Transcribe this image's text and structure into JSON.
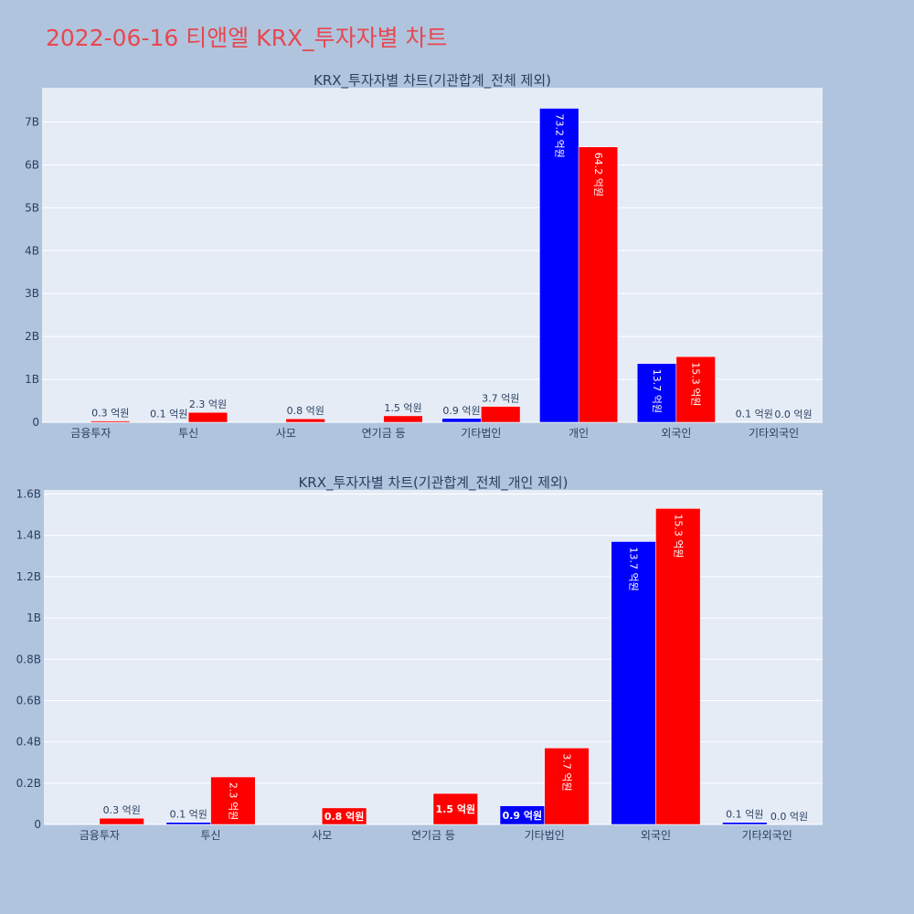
{
  "page": {
    "title": "2022-06-16 티앤엘 KRX_투자자별 차트",
    "background": "#b0c4de",
    "title_color": "#e8474f",
    "plot_background": "#e5ecf6"
  },
  "chart_data": [
    {
      "type": "bar",
      "title": "KRX_투자자별 차트(기관합계_전체 제외)",
      "categories": [
        "금융투자",
        "투신",
        "사모",
        "연기금 등",
        "기타법인",
        "개인",
        "외국인",
        "기타외국인"
      ],
      "series": [
        {
          "color": "#0000ff",
          "values": [
            0,
            10000000,
            0,
            0,
            90000000,
            7320000000,
            1370000000,
            10000000
          ],
          "labels": [
            "",
            "0.1 억원",
            "",
            "",
            "0.9 억원",
            "73.2 억원",
            "13.7 억원",
            "0.1 억원"
          ]
        },
        {
          "color": "#ff0000",
          "values": [
            30000000,
            230000000,
            80000000,
            150000000,
            370000000,
            6420000000,
            1530000000,
            0
          ],
          "labels": [
            "0.3 억원",
            "2.3 억원",
            "0.8 억원",
            "1.5 억원",
            "3.7 억원",
            "64.2 억원",
            "15.3 억원",
            "0.0 억원"
          ]
        }
      ],
      "ylim": [
        0,
        7800000000
      ],
      "yticks": [
        0,
        1000000000,
        2000000000,
        3000000000,
        4000000000,
        5000000000,
        6000000000,
        7000000000
      ],
      "ytick_labels": [
        "0",
        "1B",
        "2B",
        "3B",
        "4B",
        "5B",
        "6B",
        "7B"
      ],
      "xlabel": "",
      "ylabel": "",
      "grid": true,
      "legend": "none"
    },
    {
      "type": "bar",
      "title": "KRX_투자자별 차트(기관합계_전체_개인 제외)",
      "categories": [
        "금융투자",
        "투신",
        "사모",
        "연기금 등",
        "기타법인",
        "외국인",
        "기타외국인"
      ],
      "series": [
        {
          "color": "#0000ff",
          "values": [
            0,
            10000000,
            0,
            0,
            90000000,
            1370000000,
            10000000
          ],
          "labels": [
            "",
            "0.1 억원",
            "",
            "",
            "0.9 억원",
            "13.7 억원",
            "0.1 억원"
          ]
        },
        {
          "color": "#ff0000",
          "values": [
            30000000,
            230000000,
            80000000,
            150000000,
            370000000,
            1530000000,
            0
          ],
          "labels": [
            "0.3 억원",
            "2.3 억원",
            "0.8 억원",
            "1.5 억원",
            "3.7 억원",
            "15.3 억원",
            "0.0 억원"
          ]
        }
      ],
      "ylim": [
        0,
        1620000000
      ],
      "yticks": [
        0,
        200000000,
        400000000,
        600000000,
        800000000,
        1000000000,
        1200000000,
        1400000000,
        1600000000
      ],
      "ytick_labels": [
        "0",
        "0.2B",
        "0.4B",
        "0.6B",
        "0.8B",
        "1B",
        "1.2B",
        "1.4B",
        "1.6B"
      ],
      "xlabel": "",
      "ylabel": "",
      "grid": true,
      "legend": "none"
    }
  ]
}
